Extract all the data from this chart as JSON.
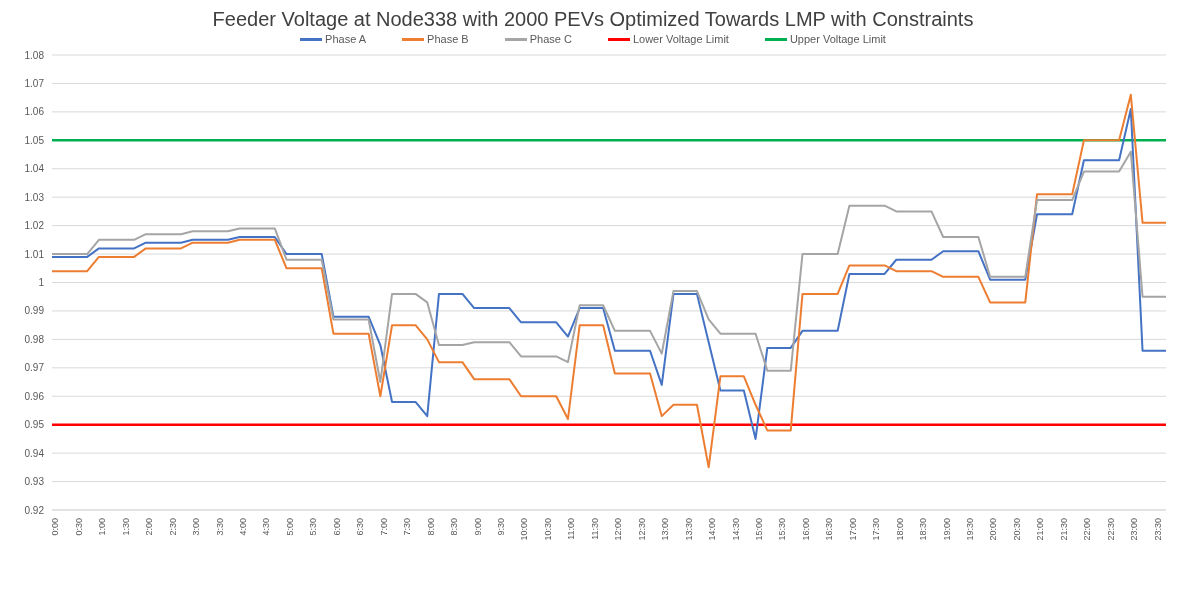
{
  "chart_data": {
    "type": "line",
    "title": "Feeder Voltage at Node338 with 2000 PEVs Optimized Towards LMP with Constraints",
    "categories": [
      "0:00",
      null,
      "0:30",
      null,
      "1:00",
      null,
      "1:30",
      null,
      "2:00",
      null,
      "2:30",
      null,
      "3:00",
      null,
      "3:30",
      null,
      "4:00",
      null,
      "4:30",
      null,
      "5:00",
      null,
      "5:30",
      null,
      "6:00",
      null,
      "6:30",
      null,
      "7:00",
      null,
      "7:30",
      null,
      "8:00",
      null,
      "8:30",
      null,
      "9:00",
      null,
      "9:30",
      null,
      "10:00",
      null,
      "10:30",
      null,
      "11:00",
      null,
      "11:30",
      null,
      "12:00",
      null,
      "12:30",
      null,
      "13:00",
      null,
      "13:30",
      null,
      "14:00",
      null,
      "14:30",
      null,
      "15:00",
      null,
      "15:30",
      null,
      "16:00",
      null,
      "16:30",
      null,
      "17:00",
      null,
      "17:30",
      null,
      "18:00",
      null,
      "18:30",
      null,
      "19:00",
      null,
      "19:30",
      null,
      "20:00",
      null,
      "20:30",
      null,
      "21:00",
      null,
      "21:30",
      null,
      "22:00",
      null,
      "22:30",
      null,
      "23:00",
      null,
      "23:30",
      null
    ],
    "series": [
      {
        "name": "Phase A",
        "color": "#4472c4",
        "values": [
          1.009,
          1.009,
          1.009,
          1.009,
          1.012,
          1.012,
          1.012,
          1.012,
          1.014,
          1.014,
          1.014,
          1.014,
          1.015,
          1.015,
          1.015,
          1.015,
          1.016,
          1.016,
          1.016,
          1.016,
          1.01,
          1.01,
          1.01,
          1.01,
          0.988,
          0.988,
          0.988,
          0.988,
          0.978,
          0.958,
          0.958,
          0.958,
          0.953,
          0.996,
          0.996,
          0.996,
          0.991,
          0.991,
          0.991,
          0.991,
          0.986,
          0.986,
          0.986,
          0.986,
          0.981,
          0.991,
          0.991,
          0.991,
          0.976,
          0.976,
          0.976,
          0.976,
          0.964,
          0.996,
          0.996,
          0.996,
          0.979,
          0.962,
          0.962,
          0.962,
          0.945,
          0.977,
          0.977,
          0.977,
          0.983,
          0.983,
          0.983,
          0.983,
          1.003,
          1.003,
          1.003,
          1.003,
          1.008,
          1.008,
          1.008,
          1.008,
          1.011,
          1.011,
          1.011,
          1.011,
          1.001,
          1.001,
          1.001,
          1.001,
          1.024,
          1.024,
          1.024,
          1.024,
          1.043,
          1.043,
          1.043,
          1.043,
          1.061,
          0.976,
          0.976,
          0.976
        ]
      },
      {
        "name": "Phase B",
        "color": "#ed7d31",
        "values": [
          1.004,
          1.004,
          1.004,
          1.004,
          1.009,
          1.009,
          1.009,
          1.009,
          1.012,
          1.012,
          1.012,
          1.012,
          1.014,
          1.014,
          1.014,
          1.014,
          1.015,
          1.015,
          1.015,
          1.015,
          1.005,
          1.005,
          1.005,
          1.005,
          0.982,
          0.982,
          0.982,
          0.982,
          0.96,
          0.985,
          0.985,
          0.985,
          0.98,
          0.972,
          0.972,
          0.972,
          0.966,
          0.966,
          0.966,
          0.966,
          0.96,
          0.96,
          0.96,
          0.96,
          0.952,
          0.985,
          0.985,
          0.985,
          0.968,
          0.968,
          0.968,
          0.968,
          0.953,
          0.957,
          0.957,
          0.957,
          0.935,
          0.967,
          0.967,
          0.967,
          0.957,
          0.948,
          0.948,
          0.948,
          0.996,
          0.996,
          0.996,
          0.996,
          1.006,
          1.006,
          1.006,
          1.006,
          1.004,
          1.004,
          1.004,
          1.004,
          1.002,
          1.002,
          1.002,
          1.002,
          0.993,
          0.993,
          0.993,
          0.993,
          1.031,
          1.031,
          1.031,
          1.031,
          1.05,
          1.05,
          1.05,
          1.05,
          1.066,
          1.021,
          1.021,
          1.021
        ]
      },
      {
        "name": "Phase C",
        "color": "#a5a5a5",
        "values": [
          1.01,
          1.01,
          1.01,
          1.01,
          1.015,
          1.015,
          1.015,
          1.015,
          1.017,
          1.017,
          1.017,
          1.017,
          1.018,
          1.018,
          1.018,
          1.018,
          1.019,
          1.019,
          1.019,
          1.019,
          1.008,
          1.008,
          1.008,
          1.008,
          0.987,
          0.987,
          0.987,
          0.987,
          0.965,
          0.996,
          0.996,
          0.996,
          0.993,
          0.978,
          0.978,
          0.978,
          0.979,
          0.979,
          0.979,
          0.979,
          0.974,
          0.974,
          0.974,
          0.974,
          0.972,
          0.992,
          0.992,
          0.992,
          0.983,
          0.983,
          0.983,
          0.983,
          0.975,
          0.997,
          0.997,
          0.997,
          0.987,
          0.982,
          0.982,
          0.982,
          0.982,
          0.969,
          0.969,
          0.969,
          1.01,
          1.01,
          1.01,
          1.01,
          1.027,
          1.027,
          1.027,
          1.027,
          1.025,
          1.025,
          1.025,
          1.025,
          1.016,
          1.016,
          1.016,
          1.016,
          1.002,
          1.002,
          1.002,
          1.002,
          1.029,
          1.029,
          1.029,
          1.029,
          1.039,
          1.039,
          1.039,
          1.039,
          1.046,
          0.995,
          0.995,
          0.995
        ]
      }
    ],
    "ref_lines": [
      {
        "axis": "y",
        "value": 0.95,
        "label": "Lower Voltage Limit",
        "color": "#ff0000"
      },
      {
        "axis": "y",
        "value": 1.05,
        "label": "Upper Voltage Limit",
        "color": "#00b050"
      }
    ],
    "ylim": [
      0.92,
      1.08
    ],
    "yticks": [
      0.92,
      0.93,
      0.94,
      0.95,
      0.96,
      0.97,
      0.98,
      0.99,
      1,
      1.01,
      1.02,
      1.03,
      1.04,
      1.05,
      1.06,
      1.07,
      1.08
    ],
    "grid": "y",
    "legend": "top"
  }
}
